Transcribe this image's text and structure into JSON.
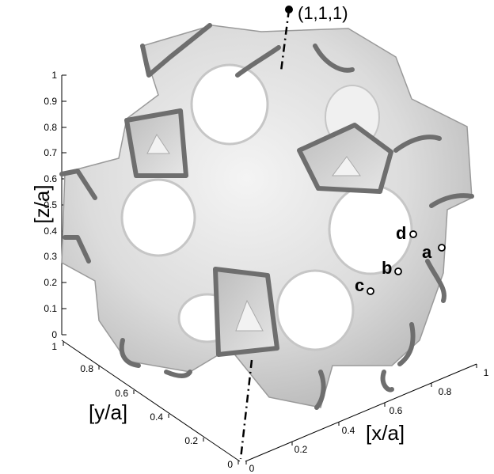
{
  "z_axis": {
    "label": "[z/a]",
    "ticks": [
      "0",
      "0.1",
      "0.2",
      "0.3",
      "0.4",
      "0.5",
      "0.6",
      "0.7",
      "0.8",
      "0.9",
      "1"
    ]
  },
  "y_axis": {
    "label": "[y/a]",
    "ticks": [
      "0",
      "0.2",
      "0.4",
      "0.6",
      "0.8",
      "1"
    ]
  },
  "x_axis": {
    "label": "[x/a]",
    "ticks": [
      "0",
      "0.2",
      "0.4",
      "0.6",
      "0.8",
      "1"
    ]
  },
  "direction_label": "(1,1,1)",
  "points": [
    {
      "label": "a"
    },
    {
      "label": "b"
    },
    {
      "label": "c"
    },
    {
      "label": "d"
    }
  ]
}
